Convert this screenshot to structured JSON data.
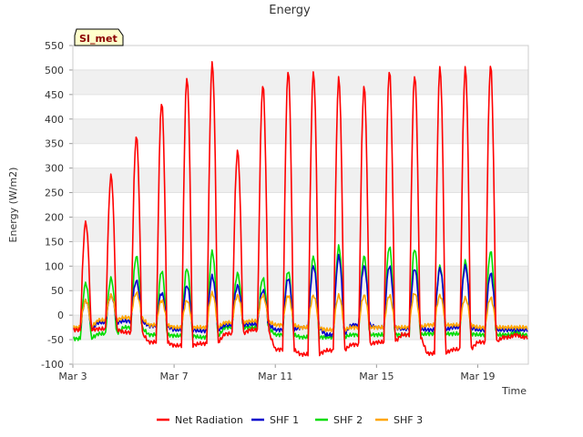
{
  "chart_data": {
    "type": "line",
    "title": "Energy",
    "xlabel": "Time",
    "ylabel": "Energy (W/m2)",
    "badge": "SI_met",
    "x_ticks": [
      "Mar 3",
      "Mar 7",
      "Mar 11",
      "Mar 15",
      "Mar 19"
    ],
    "x_tick_days": [
      3,
      7,
      11,
      15,
      19
    ],
    "xlim_days": [
      3,
      21
    ],
    "ylim": [
      -100,
      550
    ],
    "y_ticks": [
      -100,
      -50,
      0,
      50,
      100,
      150,
      200,
      250,
      300,
      350,
      400,
      450,
      500,
      550
    ],
    "grid": "horizontal bands",
    "legend_position": "bottom",
    "day_starts": [
      3.0,
      4.0,
      5.0,
      6.0,
      7.0,
      8.0,
      9.0,
      10.0,
      11.0,
      12.0,
      13.0,
      14.0,
      15.0,
      16.0,
      17.0,
      18.0,
      19.0,
      20.0
    ],
    "series": [
      {
        "name": "Net Radiation",
        "color": "#ff0000",
        "night": [
          -30,
          -28,
          -35,
          -55,
          -62,
          -58,
          -38,
          -30,
          -70,
          -80,
          -72,
          -60,
          -55,
          -40,
          -78,
          -70,
          -55,
          -45
        ],
        "peak": [
          190,
          285,
          365,
          435,
          485,
          515,
          335,
          470,
          500,
          497,
          484,
          467,
          500,
          490,
          506,
          505,
          510,
          -40
        ]
      },
      {
        "name": "SHF 1",
        "color": "#0000cc",
        "night": [
          -28,
          -15,
          -12,
          -22,
          -30,
          -32,
          -20,
          -18,
          -30,
          -25,
          -40,
          -20,
          -25,
          -28,
          -30,
          -25,
          -30,
          -30
        ],
        "peak": [
          30,
          40,
          70,
          45,
          60,
          80,
          60,
          50,
          75,
          100,
          120,
          100,
          100,
          95,
          95,
          100,
          85,
          -30
        ]
      },
      {
        "name": "SHF 2",
        "color": "#00dd00",
        "night": [
          -48,
          -38,
          -25,
          -40,
          -42,
          -45,
          -25,
          -25,
          -40,
          -45,
          -45,
          -40,
          -40,
          -40,
          -38,
          -38,
          -40,
          -40
        ],
        "peak": [
          65,
          75,
          120,
          90,
          95,
          130,
          85,
          75,
          90,
          120,
          140,
          120,
          140,
          135,
          100,
          110,
          130,
          -35
        ]
      },
      {
        "name": "SHF 3",
        "color": "#ffa500",
        "night": [
          -25,
          -10,
          -5,
          -20,
          -25,
          -25,
          -15,
          -12,
          -20,
          -25,
          -30,
          -25,
          -25,
          -25,
          -20,
          -20,
          -25,
          -25
        ],
        "peak": [
          30,
          40,
          45,
          30,
          30,
          45,
          40,
          40,
          40,
          40,
          40,
          40,
          40,
          45,
          40,
          35,
          35,
          -25
        ]
      }
    ]
  }
}
